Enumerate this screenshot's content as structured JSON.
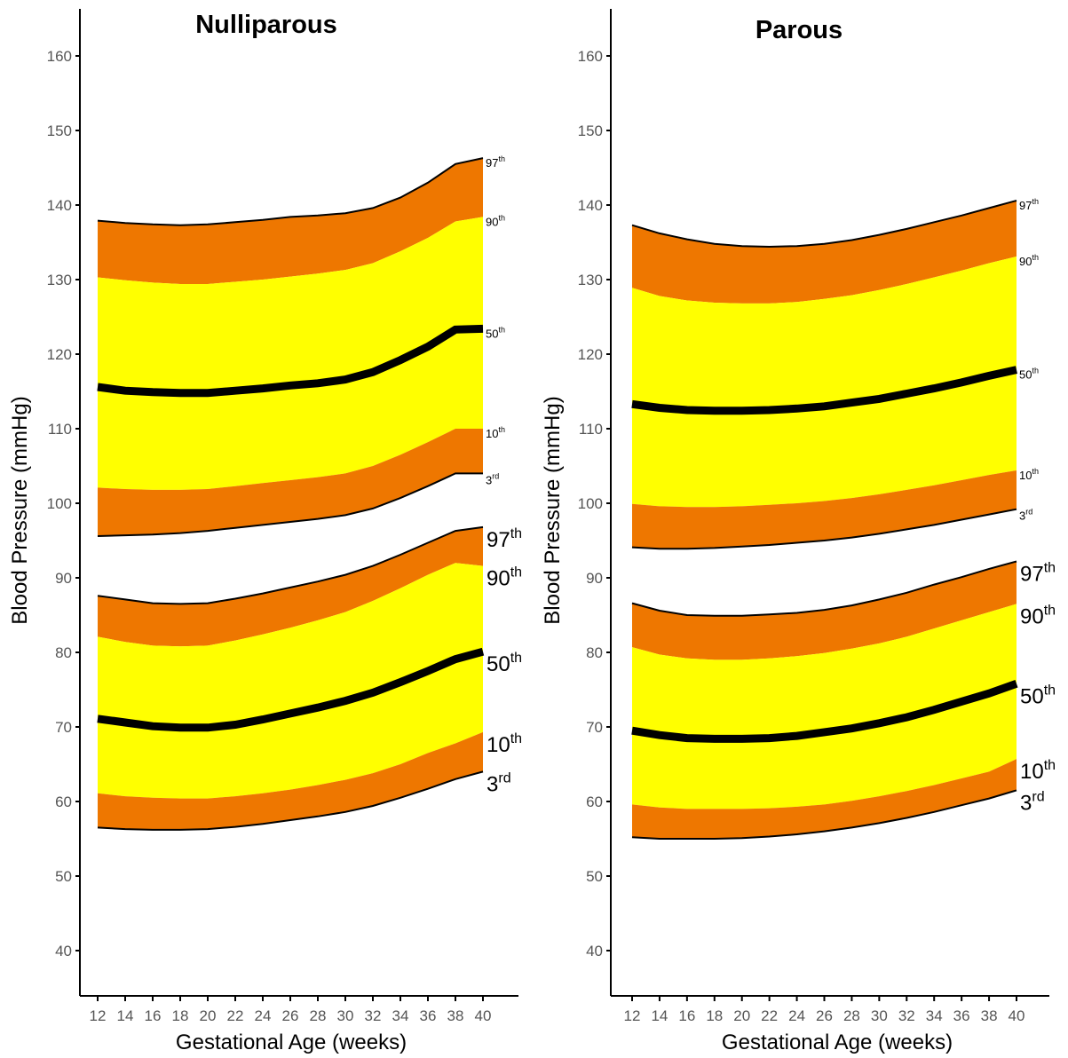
{
  "colors": {
    "outer_band": "#EE7700",
    "inner_band": "#FFFF00",
    "median_line": "#000000",
    "boundary_line": "#000000",
    "background": "#ffffff"
  },
  "chart_data": [
    {
      "type": "area",
      "title": "Nulliparous",
      "xlabel": "Gestational Age (weeks)",
      "ylabel": "Blood Pressure (mmHg)",
      "xlim": [
        10.3,
        43
      ],
      "ylim": [
        35,
        164
      ],
      "x_ticks": [
        12,
        14,
        16,
        18,
        20,
        22,
        24,
        26,
        28,
        30,
        32,
        34,
        36,
        38,
        40
      ],
      "y_ticks": [
        40,
        50,
        60,
        70,
        80,
        90,
        100,
        110,
        120,
        130,
        140,
        150,
        160
      ],
      "grid": false,
      "x": [
        12,
        14,
        16,
        18,
        20,
        22,
        24,
        26,
        28,
        30,
        32,
        34,
        36,
        38,
        40
      ],
      "systolic": [
        {
          "name": "97th",
          "values": [
            137.9,
            137.6,
            137.4,
            137.3,
            137.4,
            137.7,
            138.0,
            138.4,
            138.6,
            138.9,
            139.6,
            141.0,
            143.0,
            145.5,
            146.3
          ]
        },
        {
          "name": "90th",
          "values": [
            130.3,
            129.9,
            129.6,
            129.4,
            129.4,
            129.7,
            130.0,
            130.4,
            130.8,
            131.3,
            132.2,
            133.8,
            135.6,
            137.8,
            138.4
          ]
        },
        {
          "name": "50th",
          "values": [
            115.6,
            115.1,
            114.9,
            114.8,
            114.8,
            115.1,
            115.4,
            115.8,
            116.1,
            116.6,
            117.6,
            119.2,
            121.0,
            123.3,
            123.4
          ]
        },
        {
          "name": "10th",
          "values": [
            102.1,
            101.9,
            101.8,
            101.8,
            101.9,
            102.3,
            102.7,
            103.1,
            103.5,
            104.0,
            105.0,
            106.5,
            108.2,
            110.0,
            110.0
          ]
        },
        {
          "name": "3rd",
          "values": [
            95.6,
            95.7,
            95.8,
            96.0,
            96.3,
            96.7,
            97.1,
            97.5,
            97.9,
            98.4,
            99.3,
            100.7,
            102.3,
            104.0,
            104.0
          ]
        }
      ],
      "diastolic": [
        {
          "name": "97th",
          "values": [
            87.6,
            87.1,
            86.6,
            86.5,
            86.6,
            87.2,
            87.9,
            88.7,
            89.5,
            90.4,
            91.6,
            93.1,
            94.7,
            96.3,
            96.8
          ]
        },
        {
          "name": "90th",
          "values": [
            82.1,
            81.4,
            80.9,
            80.8,
            80.9,
            81.6,
            82.4,
            83.3,
            84.3,
            85.4,
            86.9,
            88.6,
            90.4,
            92.0,
            91.6
          ]
        },
        {
          "name": "50th",
          "values": [
            71.1,
            70.6,
            70.1,
            69.9,
            69.9,
            70.3,
            71.0,
            71.8,
            72.6,
            73.5,
            74.6,
            76.0,
            77.5,
            79.1,
            80.1
          ]
        },
        {
          "name": "10th",
          "values": [
            61.1,
            60.7,
            60.5,
            60.4,
            60.4,
            60.7,
            61.1,
            61.6,
            62.2,
            62.9,
            63.8,
            65.0,
            66.5,
            67.8,
            69.3
          ]
        },
        {
          "name": "3rd",
          "values": [
            56.5,
            56.3,
            56.2,
            56.2,
            56.3,
            56.6,
            57.0,
            57.5,
            58.0,
            58.6,
            59.4,
            60.5,
            61.7,
            63.0,
            64.0
          ]
        }
      ],
      "label_sup": [
        "th",
        "th",
        "th",
        "th",
        "rd"
      ]
    },
    {
      "type": "area",
      "title": "Parous",
      "xlabel": "Gestational Age (weeks)",
      "ylabel": "Blood Pressure (mmHg)",
      "xlim": [
        10.3,
        43
      ],
      "ylim": [
        35,
        164
      ],
      "x_ticks": [
        12,
        14,
        16,
        18,
        20,
        22,
        24,
        26,
        28,
        30,
        32,
        34,
        36,
        38,
        40
      ],
      "y_ticks": [
        40,
        50,
        60,
        70,
        80,
        90,
        100,
        110,
        120,
        130,
        140,
        150,
        160
      ],
      "grid": false,
      "x": [
        12,
        14,
        16,
        18,
        20,
        22,
        24,
        26,
        28,
        30,
        32,
        34,
        36,
        38,
        40
      ],
      "systolic": [
        {
          "name": "97th",
          "values": [
            137.3,
            136.2,
            135.4,
            134.8,
            134.5,
            134.4,
            134.5,
            134.8,
            135.3,
            136.0,
            136.8,
            137.7,
            138.6,
            139.6,
            140.6
          ]
        },
        {
          "name": "90th",
          "values": [
            128.9,
            127.8,
            127.2,
            126.9,
            126.8,
            126.8,
            127.0,
            127.4,
            127.9,
            128.6,
            129.4,
            130.3,
            131.2,
            132.2,
            133.1
          ]
        },
        {
          "name": "50th",
          "values": [
            113.3,
            112.8,
            112.5,
            112.4,
            112.4,
            112.5,
            112.7,
            113.0,
            113.5,
            114.0,
            114.7,
            115.4,
            116.2,
            117.1,
            117.9
          ]
        },
        {
          "name": "10th",
          "values": [
            99.9,
            99.6,
            99.5,
            99.5,
            99.6,
            99.8,
            100.0,
            100.3,
            100.7,
            101.2,
            101.8,
            102.4,
            103.1,
            103.8,
            104.4
          ]
        },
        {
          "name": "3rd",
          "values": [
            94.1,
            93.9,
            93.9,
            94.0,
            94.2,
            94.4,
            94.7,
            95.0,
            95.4,
            95.9,
            96.5,
            97.1,
            97.8,
            98.5,
            99.2
          ]
        }
      ],
      "diastolic": [
        {
          "name": "97th",
          "values": [
            86.6,
            85.6,
            85.0,
            84.9,
            84.9,
            85.1,
            85.3,
            85.7,
            86.3,
            87.1,
            88.0,
            89.1,
            90.1,
            91.2,
            92.2
          ]
        },
        {
          "name": "90th",
          "values": [
            80.7,
            79.7,
            79.2,
            79.0,
            79.0,
            79.2,
            79.5,
            79.9,
            80.5,
            81.2,
            82.1,
            83.2,
            84.3,
            85.4,
            86.5
          ]
        },
        {
          "name": "50th",
          "values": [
            69.5,
            68.9,
            68.5,
            68.4,
            68.4,
            68.5,
            68.8,
            69.3,
            69.8,
            70.5,
            71.3,
            72.3,
            73.4,
            74.5,
            75.8
          ]
        },
        {
          "name": "10th",
          "values": [
            59.6,
            59.2,
            59.0,
            59.0,
            59.0,
            59.1,
            59.3,
            59.6,
            60.1,
            60.7,
            61.4,
            62.2,
            63.1,
            64.0,
            65.7
          ]
        },
        {
          "name": "3rd",
          "values": [
            55.2,
            55.0,
            55.0,
            55.0,
            55.1,
            55.3,
            55.6,
            56.0,
            56.5,
            57.1,
            57.8,
            58.6,
            59.5,
            60.4,
            61.5
          ]
        }
      ],
      "label_sup": [
        "th",
        "th",
        "th",
        "th",
        "rd"
      ]
    }
  ]
}
